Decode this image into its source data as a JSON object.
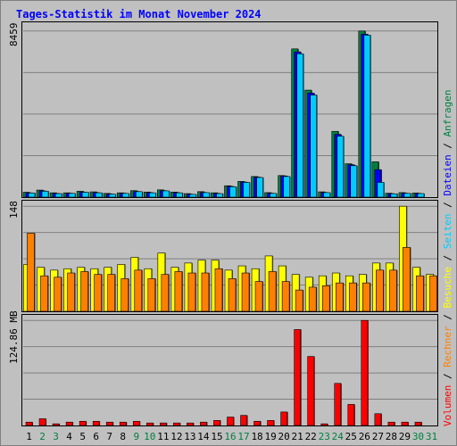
{
  "title": "Tages-Statistik im Monat November 2024",
  "chart_data": {
    "type": "bar",
    "categories": [
      "1",
      "2",
      "3",
      "4",
      "5",
      "6",
      "7",
      "8",
      "9",
      "10",
      "11",
      "12",
      "13",
      "14",
      "15",
      "16",
      "17",
      "18",
      "19",
      "20",
      "21",
      "22",
      "23",
      "24",
      "25",
      "26",
      "27",
      "28",
      "29",
      "30",
      "31"
    ],
    "weekend_days": [
      "2",
      "3",
      "9",
      "10",
      "16",
      "17",
      "23",
      "24",
      "30",
      "31"
    ],
    "top_panel": {
      "ymax_label": "8459",
      "ymax": 8459,
      "series": [
        {
          "name": "Anfragen",
          "color": "#008040",
          "values": [
            250,
            360,
            220,
            220,
            300,
            270,
            190,
            220,
            330,
            260,
            370,
            260,
            180,
            280,
            220,
            580,
            800,
            1050,
            230,
            1100,
            7550,
            5450,
            270,
            3350,
            1700,
            8459,
            1800,
            200,
            230,
            210,
            0
          ]
        },
        {
          "name": "Dateien",
          "color": "#0000ff",
          "values": [
            220,
            320,
            190,
            200,
            260,
            230,
            160,
            200,
            290,
            230,
            330,
            230,
            150,
            240,
            190,
            550,
            770,
            1020,
            200,
            1080,
            7400,
            5300,
            240,
            3200,
            1650,
            8300,
            1400,
            180,
            200,
            190,
            0
          ]
        },
        {
          "name": "Seiten",
          "color": "#00ccff",
          "values": [
            210,
            300,
            180,
            190,
            250,
            220,
            150,
            190,
            280,
            220,
            320,
            220,
            140,
            230,
            180,
            530,
            750,
            1000,
            190,
            1050,
            7300,
            5200,
            230,
            3100,
            1600,
            8250,
            750,
            170,
            190,
            180,
            0
          ]
        }
      ]
    },
    "middle_panel": {
      "ymax_label": "148",
      "ymax": 148,
      "series": [
        {
          "name": "Besuche",
          "color": "#ffff00",
          "values": [
            66,
            62,
            58,
            60,
            62,
            60,
            62,
            66,
            76,
            60,
            82,
            62,
            68,
            72,
            72,
            58,
            64,
            60,
            78,
            64,
            52,
            48,
            50,
            54,
            50,
            52,
            68,
            68,
            148,
            62,
            52
          ]
        },
        {
          "name": "Rechner",
          "color": "#ff8000",
          "values": [
            110,
            50,
            48,
            54,
            56,
            52,
            52,
            46,
            58,
            46,
            52,
            56,
            54,
            54,
            60,
            46,
            54,
            42,
            56,
            42,
            30,
            34,
            36,
            40,
            40,
            40,
            58,
            58,
            90,
            50,
            50
          ]
        }
      ]
    },
    "bottom_panel": {
      "ymax_label": "124.86 MB",
      "ymax": 124.86,
      "series": [
        {
          "name": "Volumen",
          "color": "#ff0000",
          "values": [
            4,
            8,
            2,
            4,
            5,
            5,
            4,
            4,
            5,
            3,
            3,
            3,
            3,
            4,
            6,
            10,
            12,
            5,
            6,
            16,
            114,
            82,
            2,
            50,
            25,
            124.86,
            14,
            4,
            4,
            4,
            0
          ]
        }
      ]
    },
    "legend": [
      "Anfragen",
      "Dateien",
      "Seiten",
      "Besuche",
      "Rechner",
      "Volumen"
    ],
    "legend_separator": "/",
    "legend_position": "right-vertical",
    "grid": true
  }
}
